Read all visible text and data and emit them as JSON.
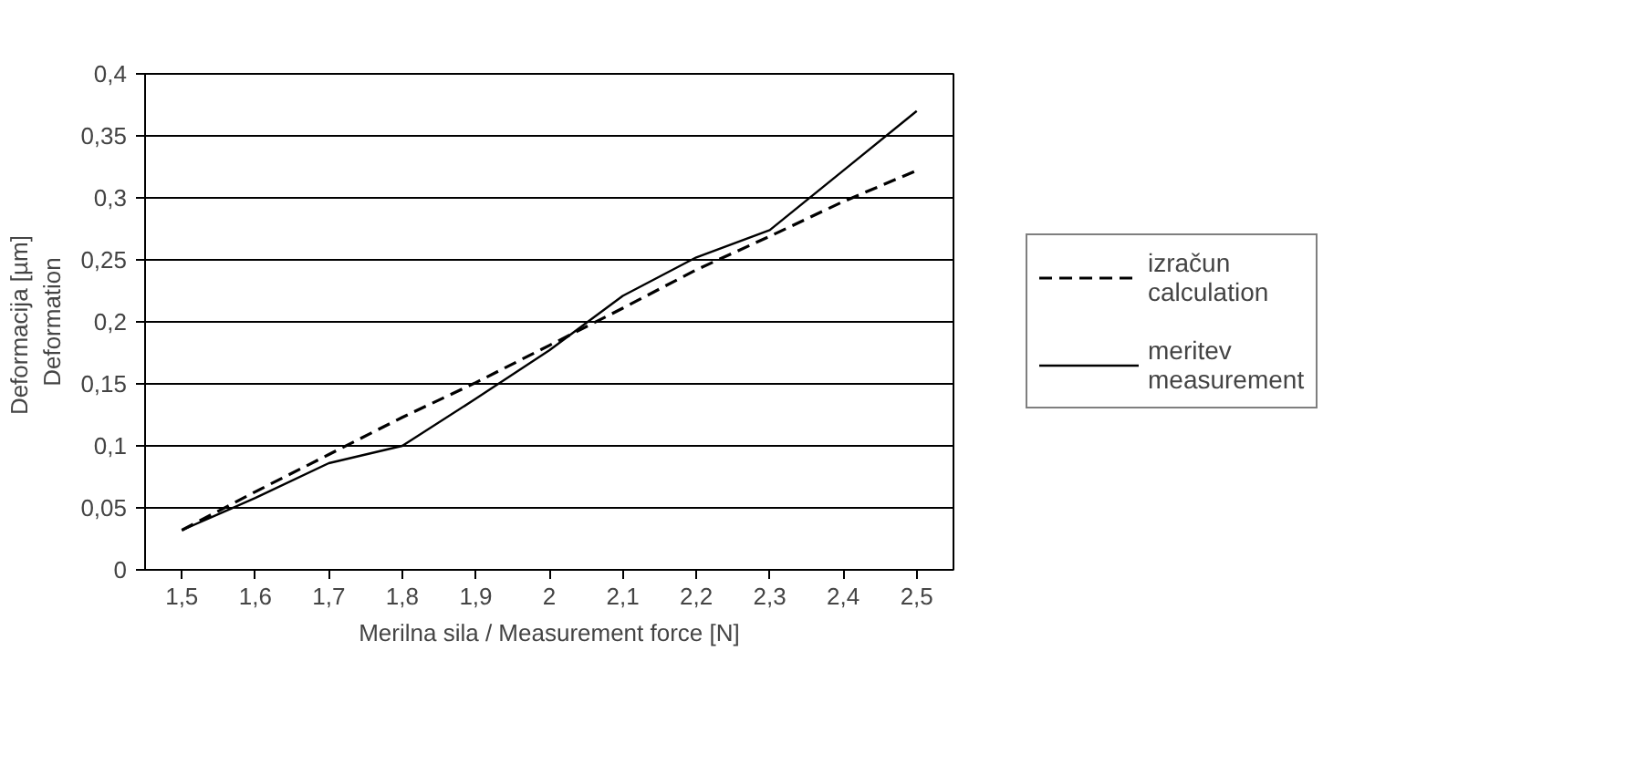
{
  "chart_data": {
    "type": "line",
    "xlabel": "Merilna sila / Measurement force [N]",
    "ylabel": "Deformacija  [µm]\nDeformation",
    "categories": [
      "1,5",
      "1,6",
      "1,7",
      "1,8",
      "1,9",
      "2",
      "2,1",
      "2,2",
      "2,3",
      "2,4",
      "2,5"
    ],
    "series": [
      {
        "name": "izračun\ncalculation",
        "color": "#000000",
        "line_style": "dashed",
        "values": [
          0.032,
          0.063,
          0.093,
          0.123,
          0.151,
          0.181,
          0.211,
          0.242,
          0.269,
          0.297,
          0.322
        ]
      },
      {
        "name": "meritev\nmeasurement",
        "color": "#000000",
        "line_style": "solid",
        "values": [
          0.032,
          0.058,
          0.086,
          0.1,
          0.138,
          0.177,
          0.221,
          0.252,
          0.274,
          0.322,
          0.37
        ]
      }
    ],
    "ylim": [
      0,
      0.4
    ],
    "yticks": [
      0,
      {
        "value": 0.05,
        "label": "0,05"
      },
      {
        "value": 0.1,
        "label": "0,1"
      },
      {
        "value": 0.15,
        "label": "0,15"
      },
      {
        "value": 0.2,
        "label": "0,2"
      },
      {
        "value": 0.25,
        "label": "0,25"
      },
      {
        "value": 0.3,
        "label": "0,3"
      },
      {
        "value": 0.35,
        "label": "0,35"
      },
      {
        "value": 0.4,
        "label": "0,4"
      }
    ],
    "grid": "y",
    "legend": "right"
  }
}
